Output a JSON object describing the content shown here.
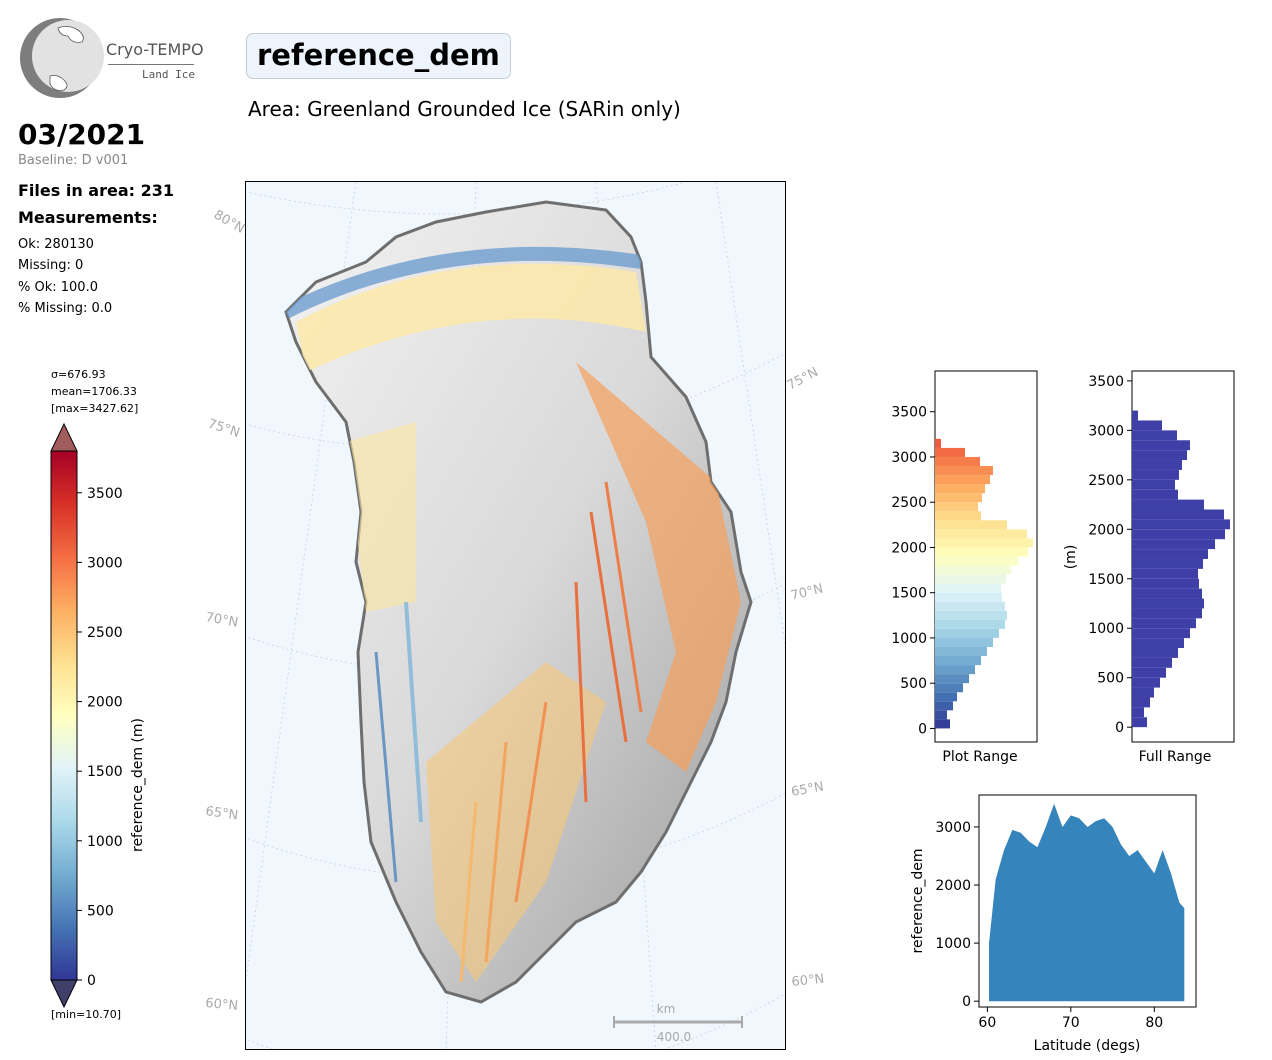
{
  "logo": {
    "title": "Cryo-TEMPO",
    "subtitle": "Land Ice"
  },
  "header": {
    "date": "03/2021",
    "baseline": "Baseline: D v001",
    "title": "reference_dem",
    "area": "Area: Greenland Grounded Ice (SARin only)"
  },
  "stats": {
    "files": "Files in area: 231",
    "measurements": "Measurements:",
    "ok": "Ok: 280130",
    "missing": "Missing: 0",
    "pct_ok": "% Ok: 100.0",
    "pct_missing": "% Missing: 0.0"
  },
  "colorbar": {
    "sigma": "σ=676.93",
    "mean": "mean=1706.33",
    "max": "[max=3427.62]",
    "min": "[min=10.70]",
    "label": "reference_dem (m)",
    "ticks": [
      0,
      500,
      1000,
      1500,
      2000,
      2500,
      3000,
      3500
    ],
    "vmin": 0,
    "vmax": 3800,
    "colors": [
      "#313695",
      "#4575b4",
      "#74add1",
      "#abd9e9",
      "#e0f3f8",
      "#ffffbf",
      "#fee090",
      "#fdae61",
      "#f46d43",
      "#d73027",
      "#a50026"
    ]
  },
  "map": {
    "lat_labels_left": [
      "80°N",
      "75°N",
      "70°N",
      "65°N",
      "60°N"
    ],
    "lat_labels_right": [
      "75°N",
      "70°N",
      "65°N",
      "60°N"
    ],
    "scalebar_unit": "km",
    "scalebar_value": "400.0"
  },
  "chart_data": [
    {
      "type": "bar",
      "orientation": "horizontal",
      "xlabel": "Plot Range",
      "ylim": [
        -150,
        3950
      ],
      "yticks": [
        0,
        500,
        1000,
        1500,
        2000,
        2500,
        3000,
        3500
      ],
      "bins": [
        0,
        100,
        200,
        300,
        400,
        500,
        600,
        700,
        800,
        900,
        1000,
        1100,
        1200,
        1300,
        1400,
        1500,
        1600,
        1700,
        1800,
        1900,
        2000,
        2100,
        2200,
        2300,
        2400,
        2500,
        2600,
        2700,
        2800,
        2900,
        3000,
        3100
      ],
      "values": [
        0.15,
        0.12,
        0.18,
        0.22,
        0.28,
        0.34,
        0.4,
        0.46,
        0.52,
        0.58,
        0.64,
        0.7,
        0.72,
        0.7,
        0.67,
        0.66,
        0.71,
        0.76,
        0.83,
        0.93,
        0.98,
        0.92,
        0.72,
        0.46,
        0.43,
        0.47,
        0.5,
        0.55,
        0.58,
        0.45,
        0.3,
        0.06
      ]
    },
    {
      "type": "bar",
      "orientation": "horizontal",
      "xlabel": "Full Range",
      "ylabel": "(m)",
      "ylim": [
        -150,
        3600
      ],
      "yticks": [
        0,
        500,
        1000,
        1500,
        2000,
        2500,
        3000,
        3500
      ],
      "color": "#3f3fa8",
      "bins": [
        0,
        100,
        200,
        300,
        400,
        500,
        600,
        700,
        800,
        900,
        1000,
        1100,
        1200,
        1300,
        1400,
        1500,
        1600,
        1700,
        1800,
        1900,
        2000,
        2100,
        2200,
        2300,
        2400,
        2500,
        2600,
        2700,
        2800,
        2900,
        3000,
        3100
      ],
      "values": [
        0.15,
        0.12,
        0.18,
        0.22,
        0.28,
        0.34,
        0.4,
        0.46,
        0.52,
        0.58,
        0.64,
        0.7,
        0.72,
        0.7,
        0.67,
        0.66,
        0.71,
        0.76,
        0.83,
        0.93,
        0.98,
        0.92,
        0.72,
        0.46,
        0.43,
        0.47,
        0.5,
        0.55,
        0.58,
        0.45,
        0.3,
        0.06
      ]
    },
    {
      "type": "scatter",
      "xlabel": "Latitude (degs)",
      "ylabel": "reference_dem",
      "xlim": [
        59,
        85
      ],
      "ylim": [
        -100,
        3550
      ],
      "xticks": [
        60,
        70,
        80
      ],
      "yticks": [
        0,
        1000,
        2000,
        3000
      ],
      "color": "#1f77b4",
      "upper_envelope": [
        [
          60.2,
          1000
        ],
        [
          61,
          2100
        ],
        [
          62,
          2600
        ],
        [
          63,
          2950
        ],
        [
          64,
          2900
        ],
        [
          65,
          2750
        ],
        [
          66,
          2650
        ],
        [
          67,
          3000
        ],
        [
          68,
          3400
        ],
        [
          69,
          3000
        ],
        [
          70,
          3200
        ],
        [
          71,
          3150
        ],
        [
          72,
          3000
        ],
        [
          73,
          3100
        ],
        [
          74,
          3150
        ],
        [
          75,
          3000
        ],
        [
          76,
          2700
        ],
        [
          77,
          2500
        ],
        [
          78,
          2600
        ],
        [
          79,
          2400
        ],
        [
          80,
          2200
        ],
        [
          81,
          2600
        ],
        [
          82,
          2200
        ],
        [
          83,
          1700
        ],
        [
          83.6,
          1600
        ]
      ]
    }
  ]
}
